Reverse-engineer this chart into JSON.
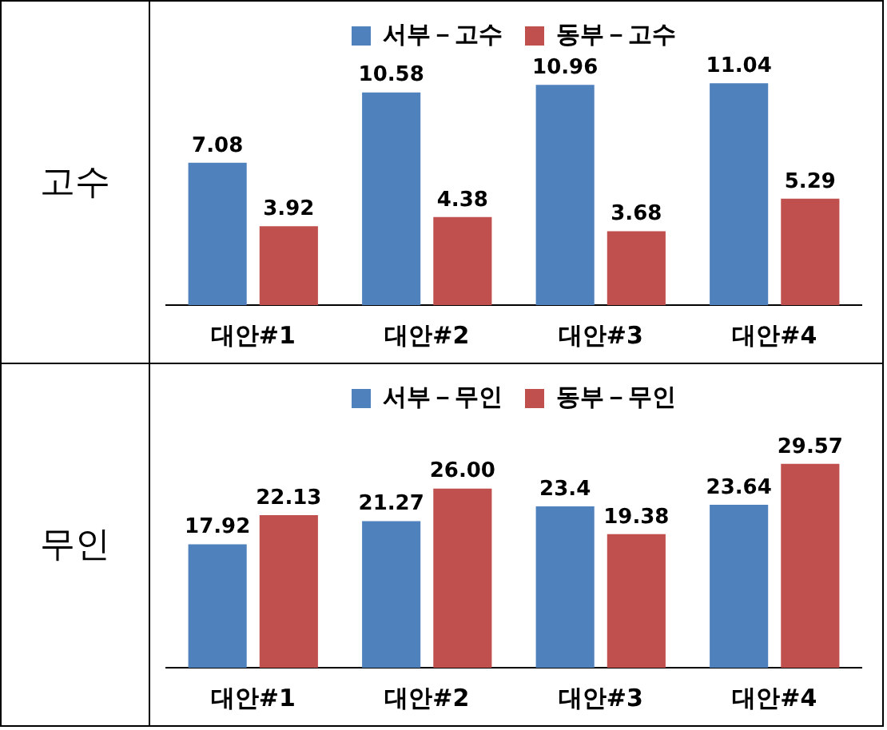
{
  "chart_data": [
    {
      "type": "bar",
      "ylabel": "고수",
      "categories": [
        "대안#1",
        "대안#2",
        "대안#3",
        "대안#4"
      ],
      "legend": "top",
      "tick_labels": "x",
      "grid": false,
      "series": [
        {
          "name": "서부－고수",
          "color": "#4f81bd",
          "values": [
            7.08,
            10.58,
            10.96,
            11.04
          ],
          "value_labels": [
            "7.08",
            "10.58",
            "10.96",
            "11.04"
          ]
        },
        {
          "name": "동부－고수",
          "color": "#c0504d",
          "values": [
            3.92,
            4.38,
            3.68,
            5.29
          ],
          "value_labels": [
            "3.92",
            "4.38",
            "3.68",
            "5.29"
          ]
        }
      ]
    },
    {
      "type": "bar",
      "ylabel": "무인",
      "categories": [
        "대안#1",
        "대안#2",
        "대안#3",
        "대안#4"
      ],
      "legend": "top",
      "tick_labels": "x",
      "grid": false,
      "series": [
        {
          "name": "서부－무인",
          "color": "#4f81bd",
          "values": [
            17.92,
            21.27,
            23.4,
            23.64
          ],
          "value_labels": [
            "17.92",
            "21.27",
            "23.4",
            "23.64"
          ]
        },
        {
          "name": "동부－무인",
          "color": "#c0504d",
          "values": [
            22.13,
            26.0,
            19.38,
            29.57
          ],
          "value_labels": [
            "22.13",
            "26.00",
            "19.38",
            "29.57"
          ]
        }
      ]
    }
  ]
}
